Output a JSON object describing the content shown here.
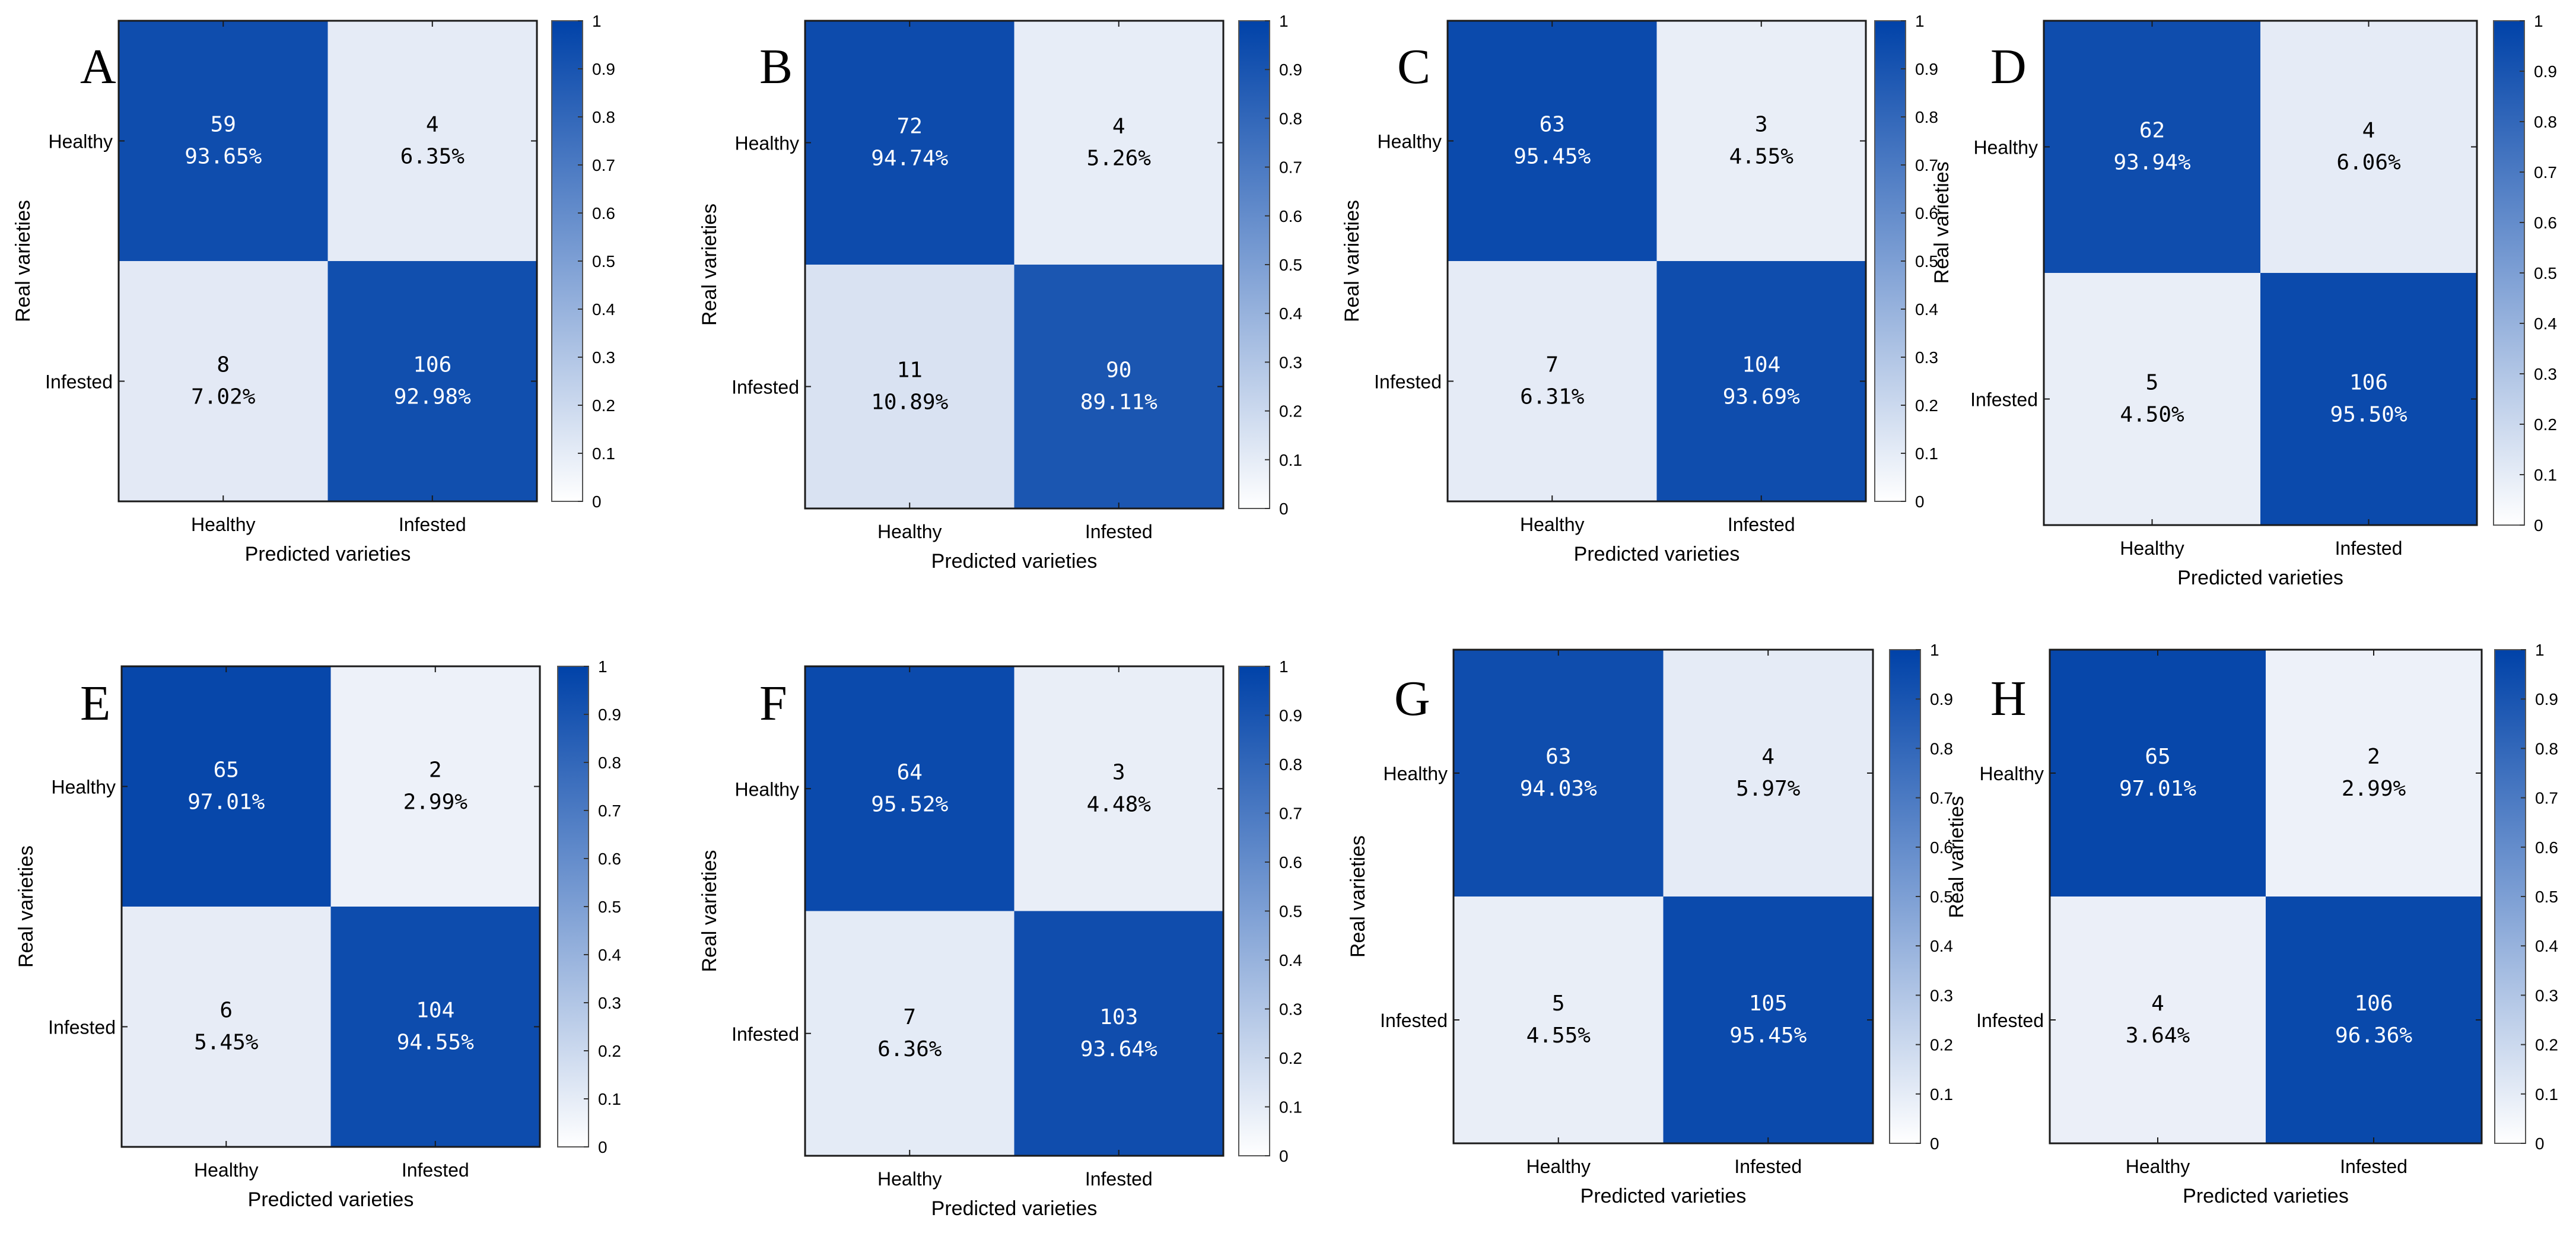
{
  "chart_data": [
    {
      "panel": "A",
      "type": "heatmap",
      "xlabel": "Predicted varieties",
      "ylabel": "Real varieties",
      "row_labels": [
        "Healthy",
        "Infested"
      ],
      "col_labels": [
        "Healthy",
        "Infested"
      ],
      "counts": [
        [
          59,
          4
        ],
        [
          8,
          106
        ]
      ],
      "percent_labels": [
        [
          "93.65%",
          "6.35%"
        ],
        [
          "7.02%",
          "92.98%"
        ]
      ],
      "values": [
        [
          0.9365,
          0.0635
        ],
        [
          0.0702,
          0.9298
        ]
      ],
      "colorbar": {
        "ticks": [
          "0",
          "0.1",
          "0.2",
          "0.3",
          "0.4",
          "0.5",
          "0.6",
          "0.7",
          "0.8",
          "0.9",
          "1"
        ],
        "range": [
          0,
          1
        ]
      }
    },
    {
      "panel": "B",
      "type": "heatmap",
      "xlabel": "Predicted varieties",
      "ylabel": "Real varieties",
      "row_labels": [
        "Healthy",
        "Infested"
      ],
      "col_labels": [
        "Healthy",
        "Infested"
      ],
      "counts": [
        [
          72,
          4
        ],
        [
          11,
          90
        ]
      ],
      "percent_labels": [
        [
          "94.74%",
          "5.26%"
        ],
        [
          "10.89%",
          "89.11%"
        ]
      ],
      "values": [
        [
          0.9474,
          0.0526
        ],
        [
          0.1089,
          0.8911
        ]
      ],
      "colorbar": {
        "ticks": [
          "0",
          "0.1",
          "0.2",
          "0.3",
          "0.4",
          "0.5",
          "0.6",
          "0.7",
          "0.8",
          "0.9",
          "1"
        ],
        "range": [
          0,
          1
        ]
      }
    },
    {
      "panel": "C",
      "type": "heatmap",
      "xlabel": "Predicted varieties",
      "ylabel": "Real varieties",
      "ylabel2": "Real varieties",
      "row_labels": [
        "Healthy",
        "Infested"
      ],
      "col_labels": [
        "Healthy",
        "Infested"
      ],
      "counts": [
        [
          63,
          3
        ],
        [
          7,
          104
        ]
      ],
      "percent_labels": [
        [
          "95.45%",
          "4.55%"
        ],
        [
          "6.31%",
          "93.69%"
        ]
      ],
      "values": [
        [
          0.9545,
          0.0455
        ],
        [
          0.0631,
          0.9369
        ]
      ],
      "colorbar": {
        "ticks": [
          "0",
          "0.1",
          "0.2",
          "0.3",
          "0.4",
          "0.5",
          "0.6",
          "0.7",
          "0.8",
          "0.9",
          "1"
        ],
        "range": [
          0,
          1
        ]
      }
    },
    {
      "panel": "D",
      "type": "heatmap",
      "xlabel": "Predicted varieties",
      "ylabel": "",
      "row_labels": [
        "Healthy",
        "Infested"
      ],
      "col_labels": [
        "Healthy",
        "Infested"
      ],
      "counts": [
        [
          62,
          4
        ],
        [
          5,
          106
        ]
      ],
      "percent_labels": [
        [
          "93.94%",
          "6.06%"
        ],
        [
          "4.50%",
          "95.50%"
        ]
      ],
      "values": [
        [
          0.9394,
          0.0606
        ],
        [
          0.045,
          0.955
        ]
      ],
      "colorbar": {
        "ticks": [
          "0",
          "0.1",
          "0.2",
          "0.3",
          "0.4",
          "0.5",
          "0.6",
          "0.7",
          "0.8",
          "0.9",
          "1"
        ],
        "range": [
          0,
          1
        ]
      }
    },
    {
      "panel": "E",
      "type": "heatmap",
      "xlabel": "Predicted varieties",
      "ylabel": "Real varieties",
      "row_labels": [
        "Healthy",
        "Infested"
      ],
      "col_labels": [
        "Healthy",
        "Infested"
      ],
      "counts": [
        [
          65,
          2
        ],
        [
          6,
          104
        ]
      ],
      "percent_labels": [
        [
          "97.01%",
          "2.99%"
        ],
        [
          "5.45%",
          "94.55%"
        ]
      ],
      "values": [
        [
          0.9701,
          0.0299
        ],
        [
          0.0545,
          0.9455
        ]
      ],
      "colorbar": {
        "ticks": [
          "0",
          "0.1",
          "0.2",
          "0.3",
          "0.4",
          "0.5",
          "0.6",
          "0.7",
          "0.8",
          "0.9",
          "1"
        ],
        "range": [
          0,
          1
        ]
      }
    },
    {
      "panel": "F",
      "type": "heatmap",
      "xlabel": "Predicted varieties",
      "ylabel": "Real varieties",
      "row_labels": [
        "Healthy",
        "Infested"
      ],
      "col_labels": [
        "Healthy",
        "Infested"
      ],
      "counts": [
        [
          64,
          3
        ],
        [
          7,
          103
        ]
      ],
      "percent_labels": [
        [
          "95.52%",
          "4.48%"
        ],
        [
          "6.36%",
          "93.64%"
        ]
      ],
      "values": [
        [
          0.9552,
          0.0448
        ],
        [
          0.0636,
          0.9364
        ]
      ],
      "colorbar": {
        "ticks": [
          "0",
          "0.1",
          "0.2",
          "0.3",
          "0.4",
          "0.5",
          "0.6",
          "0.7",
          "0.8",
          "0.9",
          "1"
        ],
        "range": [
          0,
          1
        ]
      }
    },
    {
      "panel": "G",
      "type": "heatmap",
      "xlabel": "Predicted varieties",
      "ylabel": "Real varieties",
      "ylabel2": "Real varieties",
      "row_labels": [
        "Healthy",
        "Infested"
      ],
      "col_labels": [
        "Healthy",
        "Infested"
      ],
      "counts": [
        [
          63,
          4
        ],
        [
          5,
          105
        ]
      ],
      "percent_labels": [
        [
          "94.03%",
          "5.97%"
        ],
        [
          "4.55%",
          "95.45%"
        ]
      ],
      "values": [
        [
          0.9403,
          0.0597
        ],
        [
          0.0455,
          0.9545
        ]
      ],
      "colorbar": {
        "ticks": [
          "0",
          "0.1",
          "0.2",
          "0.3",
          "0.4",
          "0.5",
          "0.6",
          "0.7",
          "0.8",
          "0.9",
          "1"
        ],
        "range": [
          0,
          1
        ]
      }
    },
    {
      "panel": "H",
      "type": "heatmap",
      "xlabel": "Predicted varieties",
      "ylabel": "",
      "row_labels": [
        "Healthy",
        "Infested"
      ],
      "col_labels": [
        "Healthy",
        "Infested"
      ],
      "counts": [
        [
          65,
          2
        ],
        [
          4,
          106
        ]
      ],
      "percent_labels": [
        [
          "97.01%",
          "2.99%"
        ],
        [
          "3.64%",
          "96.36%"
        ]
      ],
      "values": [
        [
          0.9701,
          0.0299
        ],
        [
          0.0364,
          0.9636
        ]
      ],
      "colorbar": {
        "ticks": [
          "0",
          "0.1",
          "0.2",
          "0.3",
          "0.4",
          "0.5",
          "0.6",
          "0.7",
          "0.8",
          "0.9",
          "1"
        ],
        "range": [
          0,
          1
        ]
      }
    }
  ],
  "colors": {
    "high": "#0042a8",
    "low": "#f4f6fb",
    "grid_frame": "#1a1a1a",
    "light_text": "#ffffff",
    "dark_text": "#000000"
  }
}
